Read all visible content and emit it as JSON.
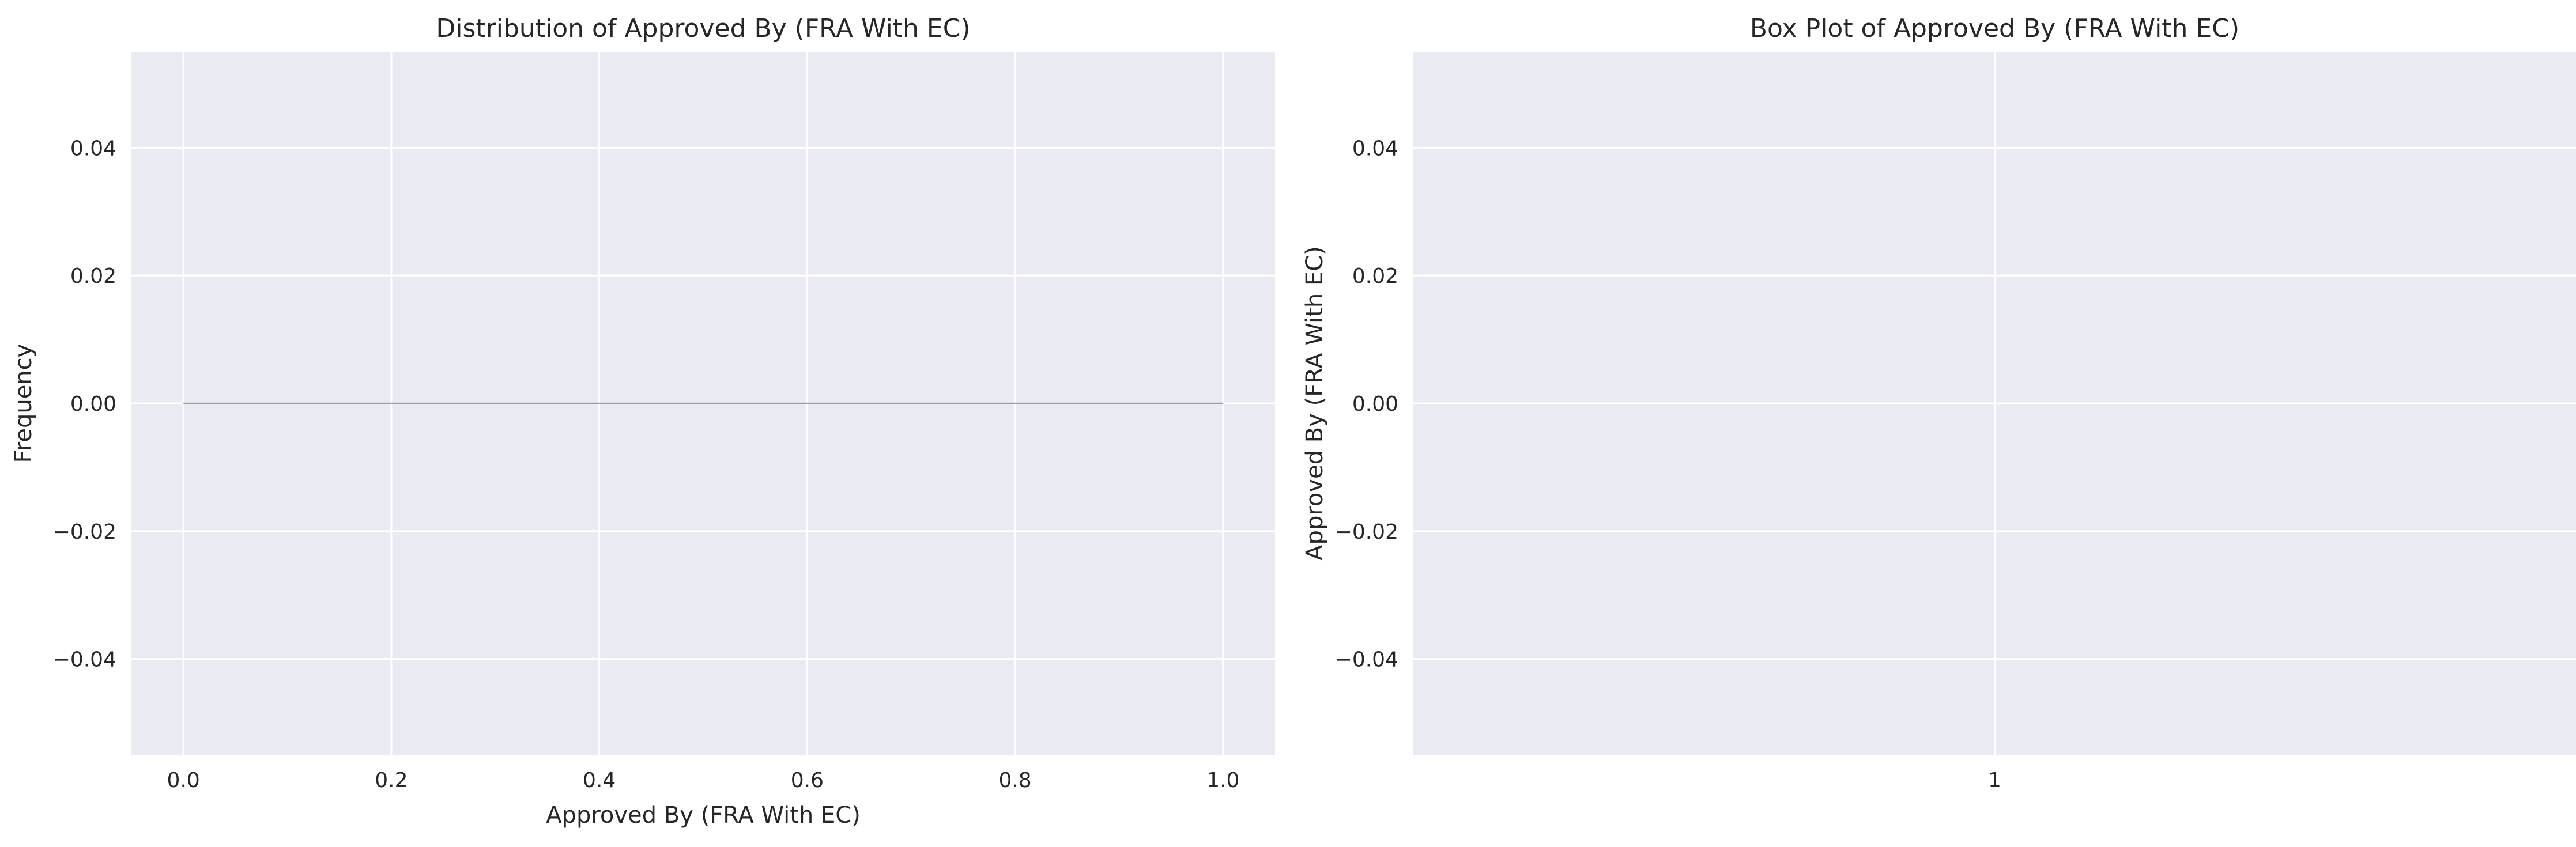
{
  "chart_data": [
    {
      "type": "histogram",
      "title": "Distribution of Approved By (FRA With EC)",
      "xlabel": "Approved By (FRA With EC)",
      "ylabel": "Frequency",
      "xlim": [
        -0.05,
        1.05
      ],
      "ylim": [
        -0.055,
        0.055
      ],
      "x_ticks": [
        0.0,
        0.2,
        0.4,
        0.6,
        0.8,
        1.0
      ],
      "x_tick_labels": [
        "0.0",
        "0.2",
        "0.4",
        "0.6",
        "0.8",
        "1.0"
      ],
      "y_ticks": [
        0.04,
        0.02,
        0.0,
        -0.02,
        -0.04
      ],
      "y_tick_labels": [
        "0.04",
        "0.02",
        "0.00",
        "−0.02",
        "−0.04"
      ],
      "series": [
        {
          "x": [
            0.0,
            1.0
          ],
          "y": [
            0.0,
            0.0
          ],
          "color": "#a0a0a0"
        }
      ],
      "grid": true,
      "background": "#eaeaf2"
    },
    {
      "type": "box",
      "title": "Box Plot of Approved By (FRA With EC)",
      "xlabel": "",
      "ylabel": "Approved By (FRA With EC)",
      "xlim": [
        0.5,
        1.5
      ],
      "ylim": [
        -0.055,
        0.055
      ],
      "x_ticks": [
        1
      ],
      "x_tick_labels": [
        "1"
      ],
      "y_ticks": [
        0.04,
        0.02,
        0.0,
        -0.02,
        -0.04
      ],
      "y_tick_labels": [
        "0.04",
        "0.02",
        "0.00",
        "−0.02",
        "−0.04"
      ],
      "series": [],
      "grid": true,
      "background": "#eaeaf2"
    }
  ]
}
